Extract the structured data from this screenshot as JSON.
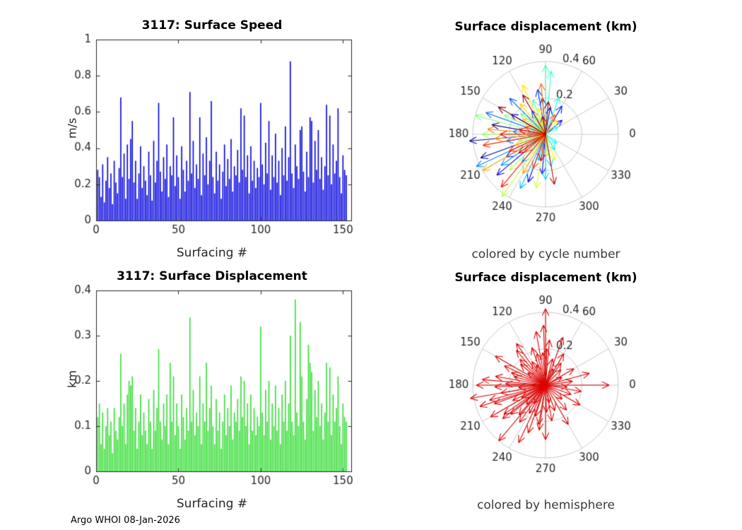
{
  "figure": {
    "footer": "Argo WHOI 08-Jan-2026"
  },
  "chart_data": [
    {
      "type": "bar",
      "title": "3117: Surface Speed",
      "xlabel": "Surfacing #",
      "ylabel": "m/s",
      "xlim": [
        0,
        155
      ],
      "ylim": [
        0,
        1
      ],
      "xticks": [
        0,
        50,
        100,
        150
      ],
      "yticks": [
        0,
        0.2,
        0.4,
        0.6,
        0.8,
        1
      ],
      "bar_color": "#0000dd",
      "values": [
        0.28,
        0.24,
        0.13,
        0.31,
        0.1,
        0.22,
        0.35,
        0.18,
        0.26,
        0.09,
        0.33,
        0.21,
        0.15,
        0.29,
        0.68,
        0.24,
        0.37,
        0.12,
        0.42,
        0.23,
        0.45,
        0.55,
        0.21,
        0.33,
        0.12,
        0.26,
        0.41,
        0.18,
        0.3,
        0.22,
        0.14,
        0.38,
        0.25,
        0.11,
        0.44,
        0.21,
        0.33,
        0.65,
        0.27,
        0.16,
        0.35,
        0.23,
        0.42,
        0.13,
        0.3,
        0.25,
        0.57,
        0.19,
        0.36,
        0.24,
        0.12,
        0.41,
        0.28,
        0.16,
        0.33,
        0.22,
        0.71,
        0.26,
        0.44,
        0.18,
        0.31,
        0.23,
        0.57,
        0.14,
        0.37,
        0.25,
        0.46,
        0.2,
        0.33,
        0.66,
        0.24,
        0.15,
        0.38,
        0.22,
        0.31,
        0.12,
        0.27,
        0.42,
        0.19,
        0.34,
        0.23,
        0.45,
        0.16,
        0.3,
        0.25,
        0.39,
        0.21,
        0.62,
        0.28,
        0.58,
        0.24,
        0.36,
        0.15,
        0.41,
        0.22,
        0.33,
        0.18,
        0.29,
        0.24,
        0.65,
        0.31,
        0.2,
        0.43,
        0.26,
        0.55,
        0.17,
        0.36,
        0.24,
        0.48,
        0.21,
        0.33,
        0.14,
        0.4,
        0.25,
        0.52,
        0.22,
        0.35,
        0.88,
        0.26,
        0.18,
        0.42,
        0.3,
        0.23,
        0.5,
        0.52,
        0.27,
        0.16,
        0.38,
        0.24,
        0.57,
        0.55,
        0.21,
        0.44,
        0.28,
        0.5,
        0.23,
        0.35,
        0.17,
        0.3,
        0.64,
        0.25,
        0.58,
        0.2,
        0.42,
        0.26,
        0.33,
        0.62,
        0.24,
        0.15,
        0.36,
        0.28,
        0.25
      ]
    },
    {
      "type": "polar_quiver",
      "title": "Surface displacement (km)",
      "caption": "colored by cycle number",
      "rticks": [
        0.2,
        0.4
      ],
      "rtick_labels": [
        "0.2",
        "0.4"
      ],
      "rmax": 0.4,
      "angle_labels": [
        "0",
        "30",
        "60",
        "90",
        "120",
        "150",
        "180",
        "210",
        "240",
        "270",
        "300",
        "330"
      ],
      "colormap": "jet",
      "arrows": [
        [
          170,
          0.3
        ],
        [
          185,
          0.42
        ],
        [
          200,
          0.38
        ],
        [
          210,
          0.25
        ],
        [
          95,
          0.2
        ],
        [
          80,
          0.15
        ],
        [
          150,
          0.22
        ],
        [
          220,
          0.35
        ],
        [
          250,
          0.28
        ],
        [
          265,
          0.22
        ],
        [
          40,
          0.12
        ],
        [
          60,
          0.18
        ],
        [
          100,
          0.25
        ],
        [
          120,
          0.15
        ],
        [
          135,
          0.28
        ],
        [
          160,
          0.35
        ],
        [
          175,
          0.18
        ],
        [
          190,
          0.22
        ],
        [
          205,
          0.42
        ],
        [
          215,
          0.3
        ],
        [
          230,
          0.2
        ],
        [
          245,
          0.33
        ],
        [
          255,
          0.15
        ],
        [
          270,
          0.25
        ],
        [
          280,
          0.18
        ],
        [
          300,
          0.1
        ],
        [
          320,
          0.08
        ],
        [
          30,
          0.08
        ],
        [
          70,
          0.22
        ],
        [
          85,
          0.35
        ],
        [
          90,
          0.38
        ],
        [
          110,
          0.2
        ],
        [
          125,
          0.12
        ],
        [
          140,
          0.18
        ],
        [
          155,
          0.25
        ],
        [
          165,
          0.4
        ],
        [
          180,
          0.35
        ],
        [
          195,
          0.15
        ],
        [
          225,
          0.28
        ],
        [
          235,
          0.42
        ],
        [
          260,
          0.3
        ],
        [
          275,
          0.12
        ],
        [
          290,
          0.15
        ],
        [
          50,
          0.1
        ],
        [
          105,
          0.15
        ],
        [
          115,
          0.3
        ],
        [
          130,
          0.22
        ],
        [
          145,
          0.15
        ],
        [
          200,
          0.18
        ],
        [
          210,
          0.4
        ],
        [
          240,
          0.25
        ],
        [
          185,
          0.28
        ],
        [
          175,
          0.32
        ],
        [
          95,
          0.28
        ],
        [
          65,
          0.12
        ],
        [
          220,
          0.15
        ],
        [
          250,
          0.2
        ],
        [
          160,
          0.12
        ],
        [
          190,
          0.35
        ],
        [
          205,
          0.22
        ],
        [
          230,
          0.38
        ],
        [
          170,
          0.15
        ],
        [
          180,
          0.25
        ],
        [
          215,
          0.18
        ],
        [
          260,
          0.15
        ],
        [
          280,
          0.28
        ],
        [
          100,
          0.1
        ],
        [
          120,
          0.25
        ],
        [
          85,
          0.18
        ],
        [
          150,
          0.3
        ]
      ]
    },
    {
      "type": "bar",
      "title": "3117: Surface Displacement",
      "xlabel": "Surfacing #",
      "ylabel": "km",
      "xlim": [
        0,
        155
      ],
      "ylim": [
        0,
        0.4
      ],
      "xticks": [
        0,
        50,
        100,
        150
      ],
      "yticks": [
        0,
        0.1,
        0.2,
        0.3,
        0.4
      ],
      "bar_color": "#33dd33",
      "values": [
        0.12,
        0.15,
        0.06,
        0.13,
        0.05,
        0.1,
        0.14,
        0.08,
        0.11,
        0.04,
        0.14,
        0.09,
        0.07,
        0.12,
        0.26,
        0.1,
        0.15,
        0.06,
        0.17,
        0.2,
        0.19,
        0.21,
        0.09,
        0.14,
        0.05,
        0.11,
        0.17,
        0.08,
        0.13,
        0.09,
        0.06,
        0.16,
        0.11,
        0.05,
        0.18,
        0.09,
        0.14,
        0.27,
        0.11,
        0.07,
        0.15,
        0.1,
        0.17,
        0.06,
        0.24,
        0.11,
        0.21,
        0.08,
        0.15,
        0.1,
        0.05,
        0.17,
        0.12,
        0.07,
        0.14,
        0.09,
        0.34,
        0.11,
        0.18,
        0.08,
        0.13,
        0.1,
        0.21,
        0.06,
        0.15,
        0.11,
        0.24,
        0.09,
        0.14,
        0.19,
        0.1,
        0.06,
        0.16,
        0.09,
        0.13,
        0.05,
        0.11,
        0.17,
        0.08,
        0.14,
        0.1,
        0.19,
        0.07,
        0.13,
        0.11,
        0.16,
        0.09,
        0.21,
        0.12,
        0.2,
        0.1,
        0.15,
        0.06,
        0.17,
        0.09,
        0.14,
        0.08,
        0.12,
        0.1,
        0.32,
        0.13,
        0.08,
        0.18,
        0.11,
        0.2,
        0.07,
        0.15,
        0.1,
        0.19,
        0.09,
        0.14,
        0.06,
        0.17,
        0.11,
        0.2,
        0.09,
        0.15,
        0.3,
        0.11,
        0.08,
        0.38,
        0.13,
        0.1,
        0.33,
        0.21,
        0.11,
        0.07,
        0.16,
        0.28,
        0.24,
        0.22,
        0.09,
        0.18,
        0.12,
        0.2,
        0.1,
        0.15,
        0.07,
        0.13,
        0.24,
        0.11,
        0.23,
        0.08,
        0.17,
        0.11,
        0.14,
        0.21,
        0.1,
        0.06,
        0.15,
        0.12,
        0.11
      ]
    },
    {
      "type": "polar_quiver",
      "title": "Surface displacement (km)",
      "caption": "colored by hemisphere",
      "rticks": [
        0.2,
        0.4
      ],
      "rtick_labels": [
        "0.2",
        "0.4"
      ],
      "rmax": 0.4,
      "angle_labels": [
        "0",
        "30",
        "60",
        "90",
        "120",
        "150",
        "180",
        "210",
        "240",
        "270",
        "300",
        "330"
      ],
      "arrow_color": "#dd0000",
      "arrows": [
        [
          90,
          0.42
        ],
        [
          180,
          0.38
        ],
        [
          200,
          0.3
        ],
        [
          210,
          0.35
        ],
        [
          220,
          0.25
        ],
        [
          170,
          0.28
        ],
        [
          160,
          0.2
        ],
        [
          150,
          0.32
        ],
        [
          140,
          0.18
        ],
        [
          130,
          0.25
        ],
        [
          120,
          0.15
        ],
        [
          110,
          0.22
        ],
        [
          100,
          0.3
        ],
        [
          95,
          0.18
        ],
        [
          85,
          0.25
        ],
        [
          75,
          0.15
        ],
        [
          60,
          0.2
        ],
        [
          45,
          0.12
        ],
        [
          30,
          0.18
        ],
        [
          15,
          0.25
        ],
        [
          0,
          0.35
        ],
        [
          350,
          0.2
        ],
        [
          340,
          0.15
        ],
        [
          330,
          0.22
        ],
        [
          320,
          0.12
        ],
        [
          310,
          0.18
        ],
        [
          300,
          0.25
        ],
        [
          290,
          0.15
        ],
        [
          280,
          0.2
        ],
        [
          270,
          0.3
        ],
        [
          260,
          0.22
        ],
        [
          250,
          0.28
        ],
        [
          245,
          0.35
        ],
        [
          240,
          0.18
        ],
        [
          235,
          0.25
        ],
        [
          230,
          0.4
        ],
        [
          225,
          0.15
        ],
        [
          215,
          0.28
        ],
        [
          205,
          0.2
        ],
        [
          195,
          0.32
        ],
        [
          190,
          0.25
        ],
        [
          185,
          0.15
        ],
        [
          175,
          0.35
        ],
        [
          165,
          0.18
        ],
        [
          155,
          0.25
        ],
        [
          145,
          0.12
        ],
        [
          135,
          0.2
        ],
        [
          125,
          0.28
        ],
        [
          115,
          0.12
        ],
        [
          105,
          0.18
        ],
        [
          92,
          0.33
        ],
        [
          88,
          0.2
        ],
        [
          182,
          0.28
        ],
        [
          178,
          0.22
        ],
        [
          198,
          0.38
        ],
        [
          208,
          0.15
        ],
        [
          218,
          0.3
        ],
        [
          228,
          0.22
        ],
        [
          238,
          0.12
        ],
        [
          252,
          0.18
        ],
        [
          262,
          0.25
        ],
        [
          272,
          0.15
        ],
        [
          282,
          0.1
        ],
        [
          8,
          0.15
        ],
        [
          355,
          0.12
        ],
        [
          25,
          0.1
        ],
        [
          55,
          0.15
        ],
        [
          70,
          0.28
        ],
        [
          65,
          0.1
        ],
        [
          190,
          0.42
        ]
      ]
    }
  ]
}
